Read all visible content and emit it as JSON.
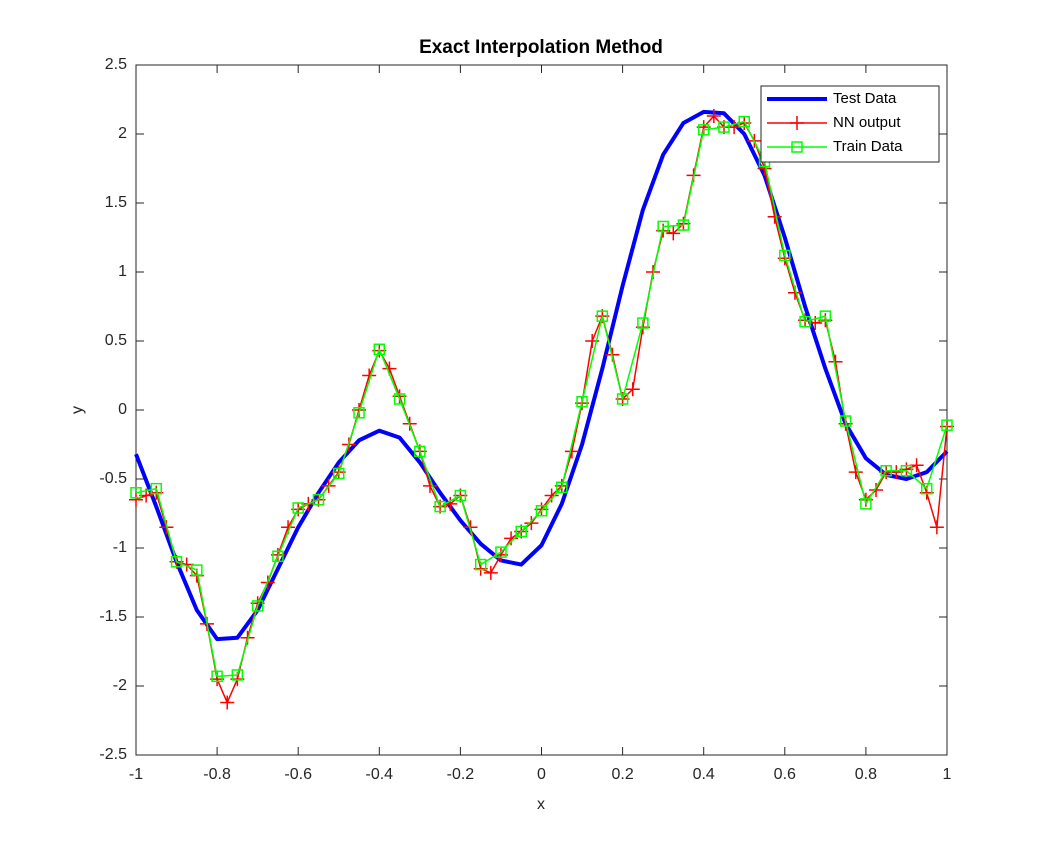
{
  "chart_data": {
    "type": "line",
    "title": "Exact Interpolation Method",
    "x_label": "x",
    "y_label": "y",
    "xlim": [
      -1,
      1
    ],
    "ylim": [
      -2.5,
      2.5
    ],
    "xticks": [
      -1,
      -0.8,
      -0.6,
      -0.4,
      -0.2,
      0,
      0.2,
      0.4,
      0.6,
      0.8,
      1
    ],
    "yticks": [
      -2.5,
      -2,
      -1.5,
      -1,
      -0.5,
      0,
      0.5,
      1,
      1.5,
      2,
      2.5
    ],
    "grid": false,
    "legend": "northeast",
    "series": [
      {
        "name": "Test Data",
        "color": "#0000ff",
        "marker": "none",
        "x": [
          -1,
          -0.95,
          -0.9,
          -0.85,
          -0.8,
          -0.75,
          -0.7,
          -0.65,
          -0.6,
          -0.55,
          -0.5,
          -0.45,
          -0.4,
          -0.35,
          -0.3,
          -0.25,
          -0.2,
          -0.15,
          -0.1,
          -0.05,
          0,
          0.05,
          0.1,
          0.15,
          0.2,
          0.25,
          0.3,
          0.35,
          0.4,
          0.45,
          0.5,
          0.55,
          0.6,
          0.65,
          0.7,
          0.75,
          0.8,
          0.85,
          0.9,
          0.95,
          1
        ],
        "values": [
          -0.32,
          -0.7,
          -1.1,
          -1.45,
          -1.66,
          -1.65,
          -1.45,
          -1.15,
          -0.85,
          -0.6,
          -0.38,
          -0.22,
          -0.15,
          -0.2,
          -0.38,
          -0.6,
          -0.8,
          -0.97,
          -1.09,
          -1.12,
          -0.98,
          -0.68,
          -0.25,
          0.3,
          0.9,
          1.45,
          1.85,
          2.08,
          2.16,
          2.15,
          2.0,
          1.7,
          1.25,
          0.75,
          0.3,
          -0.1,
          -0.35,
          -0.47,
          -0.5,
          -0.45,
          -0.3
        ]
      },
      {
        "name": "NN output",
        "color": "#ff0000",
        "marker": "plus",
        "x": [
          -1,
          -0.975,
          -0.95,
          -0.925,
          -0.9,
          -0.875,
          -0.85,
          -0.825,
          -0.8,
          -0.775,
          -0.75,
          -0.725,
          -0.7,
          -0.675,
          -0.65,
          -0.625,
          -0.6,
          -0.575,
          -0.55,
          -0.525,
          -0.5,
          -0.475,
          -0.45,
          -0.425,
          -0.4,
          -0.375,
          -0.35,
          -0.325,
          -0.3,
          -0.275,
          -0.25,
          -0.225,
          -0.2,
          -0.175,
          -0.15,
          -0.125,
          -0.1,
          -0.075,
          -0.05,
          -0.025,
          0,
          0.025,
          0.05,
          0.075,
          0.1,
          0.125,
          0.15,
          0.175,
          0.2,
          0.225,
          0.25,
          0.275,
          0.3,
          0.325,
          0.35,
          0.375,
          0.4,
          0.425,
          0.45,
          0.475,
          0.5,
          0.525,
          0.55,
          0.575,
          0.6,
          0.625,
          0.65,
          0.675,
          0.7,
          0.725,
          0.75,
          0.775,
          0.8,
          0.825,
          0.85,
          0.875,
          0.9,
          0.925,
          0.95,
          0.975,
          1
        ],
        "values": [
          -0.65,
          -0.62,
          -0.6,
          -0.85,
          -1.1,
          -1.12,
          -1.2,
          -1.55,
          -1.95,
          -2.12,
          -1.95,
          -1.65,
          -1.4,
          -1.25,
          -1.05,
          -0.85,
          -0.72,
          -0.68,
          -0.65,
          -0.55,
          -0.45,
          -0.25,
          0,
          0.25,
          0.43,
          0.3,
          0.1,
          -0.1,
          -0.3,
          -0.55,
          -0.7,
          -0.68,
          -0.62,
          -0.85,
          -1.15,
          -1.18,
          -1.05,
          -0.93,
          -0.88,
          -0.82,
          -0.72,
          -0.62,
          -0.55,
          -0.3,
          0.05,
          0.5,
          0.68,
          0.4,
          0.08,
          0.15,
          0.6,
          1.0,
          1.3,
          1.28,
          1.35,
          1.7,
          2.05,
          2.13,
          2.05,
          2.05,
          2.08,
          1.95,
          1.75,
          1.4,
          1.1,
          0.85,
          0.65,
          0.63,
          0.65,
          0.35,
          -0.1,
          -0.45,
          -0.65,
          -0.58,
          -0.45,
          -0.45,
          -0.43,
          -0.4,
          -0.6,
          -0.85,
          -0.12
        ]
      },
      {
        "name": "Train Data",
        "color": "#00ff00",
        "marker": "square",
        "x": [
          -1,
          -0.95,
          -0.9,
          -0.85,
          -0.8,
          -0.75,
          -0.7,
          -0.65,
          -0.6,
          -0.55,
          -0.5,
          -0.45,
          -0.4,
          -0.35,
          -0.3,
          -0.25,
          -0.2,
          -0.15,
          -0.1,
          -0.05,
          0,
          0.05,
          0.1,
          0.15,
          0.2,
          0.25,
          0.3,
          0.35,
          0.4,
          0.45,
          0.5,
          0.55,
          0.6,
          0.65,
          0.7,
          0.75,
          0.8,
          0.85,
          0.9,
          0.95,
          1
        ],
        "values": [
          -0.6,
          -0.57,
          -1.1,
          -1.16,
          -1.93,
          -1.92,
          -1.42,
          -1.06,
          -0.71,
          -0.65,
          -0.46,
          -0.02,
          0.44,
          0.08,
          -0.3,
          -0.7,
          -0.62,
          -1.12,
          -1.03,
          -0.88,
          -0.73,
          -0.56,
          0.06,
          0.68,
          0.08,
          0.63,
          1.33,
          1.34,
          2.03,
          2.05,
          2.09,
          1.8,
          1.12,
          0.64,
          0.68,
          -0.08,
          -0.68,
          -0.44,
          -0.44,
          -0.57,
          -0.11
        ]
      }
    ]
  }
}
